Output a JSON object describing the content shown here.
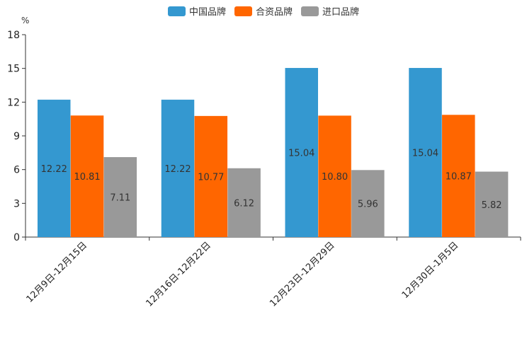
{
  "chart_data": {
    "type": "bar",
    "unit": "%",
    "categories": [
      "12月9日-12月15日",
      "12月16日-12月22日",
      "12月23日-12月29日",
      "12月30日-1月5日"
    ],
    "series": [
      {
        "name": "中国品牌",
        "color": "#3498d0",
        "values": [
          12.22,
          12.22,
          15.04,
          15.04
        ],
        "labels": [
          "12.22",
          "12.22",
          "15.04",
          "15.04"
        ]
      },
      {
        "name": "合资品牌",
        "color": "#ff6600",
        "values": [
          10.81,
          10.77,
          10.8,
          10.87
        ],
        "labels": [
          "10.81",
          "10.77",
          "10.80",
          "10.87"
        ]
      },
      {
        "name": "进口品牌",
        "color": "#999999",
        "values": [
          7.11,
          6.12,
          5.96,
          5.82
        ],
        "labels": [
          "7.11",
          "6.12",
          "5.96",
          "5.82"
        ]
      }
    ],
    "ylim": [
      0,
      18
    ],
    "yticks": [
      "0",
      "3",
      "6",
      "9",
      "12",
      "15",
      "18"
    ],
    "grid": false,
    "legend": "top-center"
  }
}
